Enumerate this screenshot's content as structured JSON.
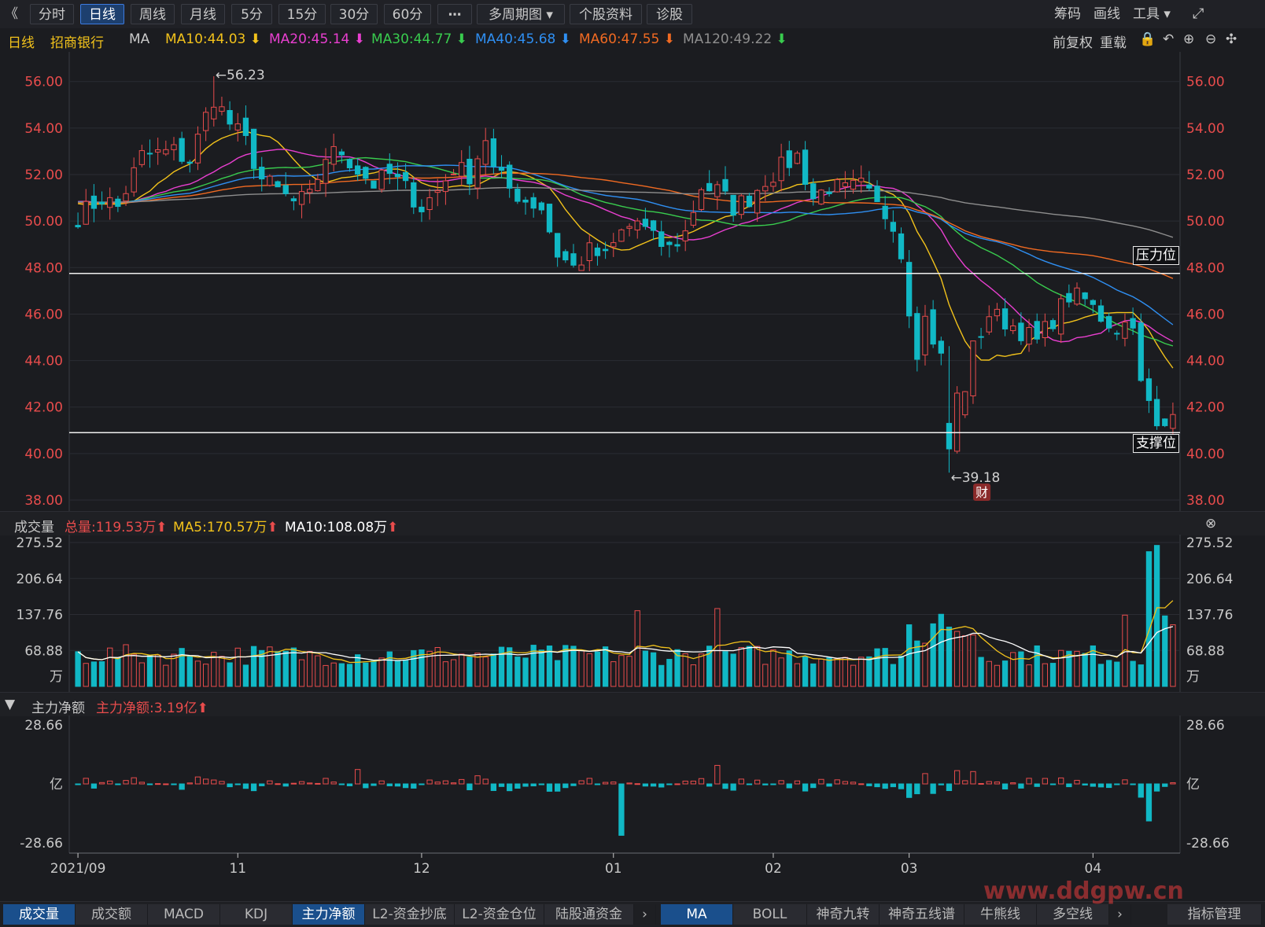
{
  "toolbar": {
    "back": "《",
    "periods": [
      "分时",
      "日线",
      "周线",
      "月线",
      "5分",
      "15分",
      "30分",
      "60分",
      "⋯",
      "多周期图 ▾",
      "个股资料",
      "诊股"
    ],
    "right_tools": [
      "筹码",
      "画线",
      "工具 ▾"
    ]
  },
  "ma_bar": {
    "period": "日线",
    "stock": "招商银行",
    "ma_label": "MA",
    "ma10": "MA10:44.03",
    "ma20": "MA20:45.14",
    "ma30": "MA30:44.77",
    "ma40": "MA40:45.68",
    "ma60": "MA60:47.55",
    "ma120": "MA120:49.22",
    "right": [
      "前复权",
      "重载"
    ]
  },
  "colors": {
    "up": "#e84c4c",
    "down": "#11b8c5",
    "ma10": "#f2c21b",
    "ma20": "#e93fd0",
    "ma30": "#39cc4e",
    "ma40": "#2f8ff2",
    "ma60": "#f06a22",
    "ma120": "#8e8e8e"
  },
  "price_axis": {
    "ticks": [
      "56.00",
      "54.00",
      "52.00",
      "50.00",
      "48.00",
      "46.00",
      "44.00",
      "42.00",
      "40.00",
      "38.00"
    ],
    "ylim": [
      38,
      56.6
    ],
    "high_mark": "←56.23",
    "low_mark": "←39.18",
    "fin_badge": "财",
    "resistance_label": "压力位",
    "support_label": "支撑位",
    "resistance_value": 47.75,
    "support_value": 40.9
  },
  "volume_panel": {
    "title": "成交量",
    "total": "总量:119.53万",
    "ma5": "MA5:170.57万",
    "ma10": "MA10:108.08万",
    "ticks": [
      "275.52",
      "206.64",
      "137.76",
      "68.88"
    ],
    "unit": "万",
    "max": 275.52
  },
  "flow_panel": {
    "title": "主力净额",
    "value": "主力净额:3.19亿",
    "ticks": [
      "28.66",
      "-28.66"
    ],
    "unit": "亿",
    "max": 28.66
  },
  "x_axis": {
    "labels": [
      "2021/09",
      "11",
      "12",
      "01",
      "02",
      "03",
      "04"
    ],
    "label_bar_index": [
      0,
      20,
      43,
      67,
      87,
      104,
      127
    ]
  },
  "bottom_tabs_left": [
    "成交量",
    "成交额",
    "MACD",
    "KDJ",
    "主力净额",
    "L2-资金抄底",
    "L2-资金仓位",
    "陆股通资金"
  ],
  "bottom_tabs_right": [
    "MA",
    "BOLL",
    "神奇九转",
    "神奇五线谱",
    "牛熊线",
    "多空线",
    "指标管理"
  ],
  "watermark": "www.ddgpw.cn",
  "chart_data": {
    "type": "candlestick",
    "title": "招商银行 日线",
    "ylim": [
      38,
      56.6
    ],
    "anchors_close": [
      [
        0,
        50.2
      ],
      [
        3,
        51.0
      ],
      [
        5,
        50.6
      ],
      [
        8,
        52.8
      ],
      [
        12,
        53.0
      ],
      [
        14,
        52.6
      ],
      [
        16,
        54.5
      ],
      [
        17,
        55.3
      ],
      [
        19,
        54.2
      ],
      [
        21,
        53.4
      ],
      [
        23,
        51.8
      ],
      [
        25,
        51.3
      ],
      [
        27,
        50.8
      ],
      [
        29,
        51.0
      ],
      [
        31,
        52.8
      ],
      [
        33,
        53.0
      ],
      [
        35,
        52.2
      ],
      [
        37,
        51.6
      ],
      [
        39,
        52.0
      ],
      [
        41,
        51.4
      ],
      [
        43,
        50.6
      ],
      [
        45,
        51.3
      ],
      [
        47,
        52.3
      ],
      [
        49,
        52.0
      ],
      [
        51,
        53.6
      ],
      [
        52,
        52.2
      ],
      [
        54,
        51.4
      ],
      [
        56,
        50.9
      ],
      [
        58,
        50.6
      ],
      [
        60,
        48.6
      ],
      [
        62,
        48.0
      ],
      [
        64,
        48.7
      ],
      [
        66,
        48.4
      ],
      [
        68,
        49.5
      ],
      [
        70,
        50.0
      ],
      [
        72,
        49.2
      ],
      [
        74,
        48.8
      ],
      [
        76,
        49.5
      ],
      [
        78,
        51.5
      ],
      [
        80,
        51.3
      ],
      [
        82,
        50.6
      ],
      [
        84,
        51.0
      ],
      [
        86,
        51.8
      ],
      [
        88,
        52.3
      ],
      [
        90,
        52.8
      ],
      [
        92,
        51.0
      ],
      [
        94,
        51.5
      ],
      [
        96,
        51.3
      ],
      [
        98,
        51.5
      ],
      [
        100,
        50.6
      ],
      [
        102,
        50.0
      ],
      [
        103,
        48.6
      ],
      [
        104,
        46.3
      ],
      [
        105,
        44.5
      ],
      [
        106,
        45.8
      ],
      [
        108,
        44.1
      ],
      [
        109,
        40.3
      ],
      [
        110,
        41.3
      ],
      [
        112,
        44.5
      ],
      [
        114,
        46.0
      ],
      [
        116,
        45.7
      ],
      [
        118,
        45.3
      ],
      [
        120,
        44.8
      ],
      [
        122,
        45.8
      ],
      [
        124,
        46.8
      ],
      [
        126,
        46.6
      ],
      [
        128,
        45.9
      ],
      [
        130,
        45.4
      ],
      [
        132,
        45.8
      ],
      [
        133,
        42.9
      ],
      [
        134,
        42.1
      ],
      [
        135,
        41.0
      ],
      [
        136,
        41.2
      ],
      [
        137,
        42.1
      ]
    ],
    "price_annotations": {
      "max": 56.23,
      "min": 39.18
    }
  }
}
